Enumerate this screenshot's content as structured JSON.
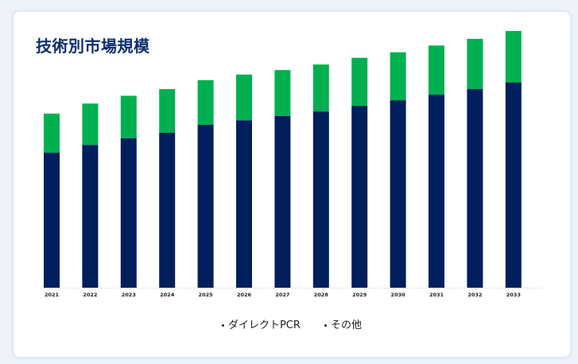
{
  "title": "技術別市場規模",
  "chart_data": {
    "type": "bar",
    "stacked": true,
    "categories": [
      "2021",
      "2022",
      "2023",
      "2024",
      "2025",
      "2026",
      "2027",
      "2028",
      "2029",
      "2030",
      "2031",
      "2032",
      "2033"
    ],
    "series": [
      {
        "name": "ダイレクトPCR",
        "color": "#001f5c",
        "values": [
          121,
          128,
          134,
          139,
          146,
          150,
          154,
          158,
          163,
          168,
          173,
          178,
          184
        ]
      },
      {
        "name": "その他",
        "color": "#00b050",
        "values": [
          35,
          37,
          38,
          39,
          40,
          41,
          41,
          42,
          43,
          43,
          44,
          45,
          46
        ]
      }
    ],
    "ylim": [
      0,
      240
    ],
    "grid": false,
    "legend_position": "bottom"
  }
}
